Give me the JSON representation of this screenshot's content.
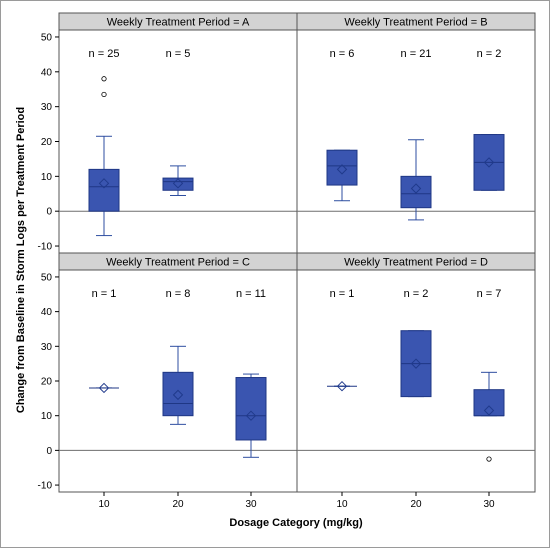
{
  "chart_data": {
    "type": "box",
    "x_categories": [
      "10",
      "20",
      "30"
    ],
    "xlabel": "Dosage Category (mg/kg)",
    "ylabel": "Change from Baseline in Storm Logs per Treatment Period",
    "ylim": [
      -12,
      52
    ],
    "yticks": [
      -10,
      0,
      10,
      20,
      30,
      40,
      50
    ],
    "reference_line_y": 0,
    "panels": [
      {
        "title": "Weekly Treatment Period = A",
        "boxes": [
          {
            "category": "10",
            "n_label": "n = 25",
            "min": -7,
            "q1": 0,
            "median": 7,
            "q3": 12,
            "max": 21.5,
            "mean": 8,
            "outliers": [
              33.5,
              38
            ]
          },
          {
            "category": "20",
            "n_label": "n = 5",
            "min": 4.5,
            "q1": 6,
            "median": 8.5,
            "q3": 9.5,
            "max": 13,
            "mean": 8,
            "outliers": []
          }
        ]
      },
      {
        "title": "Weekly Treatment Period = B",
        "boxes": [
          {
            "category": "10",
            "n_label": "n = 6",
            "min": 3,
            "q1": 7.5,
            "median": 13,
            "q3": 17.5,
            "max": 17.5,
            "mean": 12,
            "outliers": []
          },
          {
            "category": "20",
            "n_label": "n = 21",
            "min": -2.5,
            "q1": 1,
            "median": 5,
            "q3": 10,
            "max": 20.5,
            "mean": 6.5,
            "outliers": []
          },
          {
            "category": "30",
            "n_label": "n = 2",
            "min": 6,
            "q1": 6,
            "median": 14,
            "q3": 22,
            "max": 22,
            "mean": 14,
            "outliers": []
          }
        ]
      },
      {
        "title": "Weekly Treatment Period = C",
        "boxes": [
          {
            "category": "10",
            "n_label": "n = 1",
            "min": 18,
            "q1": 18,
            "median": 18,
            "q3": 18,
            "max": 18,
            "mean": 18,
            "outliers": []
          },
          {
            "category": "20",
            "n_label": "n = 8",
            "min": 7.5,
            "q1": 10,
            "median": 13.5,
            "q3": 22.5,
            "max": 30,
            "mean": 16,
            "outliers": []
          },
          {
            "category": "30",
            "n_label": "n = 11",
            "min": -2,
            "q1": 3,
            "median": 10,
            "q3": 21,
            "max": 22,
            "mean": 10,
            "outliers": []
          }
        ]
      },
      {
        "title": "Weekly Treatment Period = D",
        "boxes": [
          {
            "category": "10",
            "n_label": "n = 1",
            "min": 18.5,
            "q1": 18.5,
            "median": 18.5,
            "q3": 18.5,
            "max": 18.5,
            "mean": 18.5,
            "outliers": []
          },
          {
            "category": "20",
            "n_label": "n = 2",
            "min": 15.5,
            "q1": 15.5,
            "median": 25,
            "q3": 34.5,
            "max": 34.5,
            "mean": 25,
            "outliers": []
          },
          {
            "category": "30",
            "n_label": "n = 7",
            "min": 10,
            "q1": 10,
            "median": 10,
            "q3": 17.5,
            "max": 22.5,
            "mean": 11.5,
            "outliers": [
              -2.5
            ]
          }
        ]
      }
    ]
  },
  "colors": {
    "box_fill": "#3a55b0",
    "box_edge": "#1f3785",
    "strip_fill": "#d3d3d3",
    "reference_line": "#6e6e6e"
  }
}
